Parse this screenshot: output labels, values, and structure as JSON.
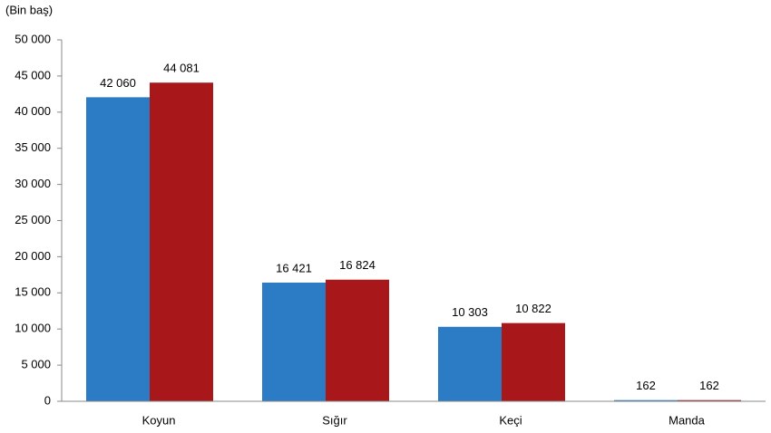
{
  "chart_data": {
    "type": "bar",
    "y_label": "(Bin baş)",
    "categories": [
      "Koyun",
      "Sığır",
      "Keçi",
      "Manda"
    ],
    "series": [
      {
        "color": "#2b7cc4",
        "values": [
          42060,
          16421,
          10303,
          162
        ],
        "value_labels": [
          "42 060",
          "16 421",
          "10 303",
          "162"
        ]
      },
      {
        "color": "#a8171a",
        "values": [
          44081,
          16824,
          10822,
          162
        ],
        "value_labels": [
          "44 081",
          "16 824",
          "10 822",
          "162"
        ]
      }
    ],
    "ylim": [
      0,
      50000
    ],
    "yticks": [
      0,
      {
        "value": 5000,
        "label": "5 000"
      },
      {
        "value": 10000,
        "label": "10 000"
      },
      {
        "value": 15000,
        "label": "15 000"
      },
      {
        "value": 20000,
        "label": "20 000"
      },
      {
        "value": 25000,
        "label": "25 000"
      },
      {
        "value": 30000,
        "label": "30 000"
      },
      {
        "value": 35000,
        "label": "35 000"
      },
      {
        "value": 40000,
        "label": "40 000"
      },
      {
        "value": 45000,
        "label": "45 000"
      },
      {
        "value": 50000,
        "label": "50 000"
      }
    ],
    "grid": false
  }
}
